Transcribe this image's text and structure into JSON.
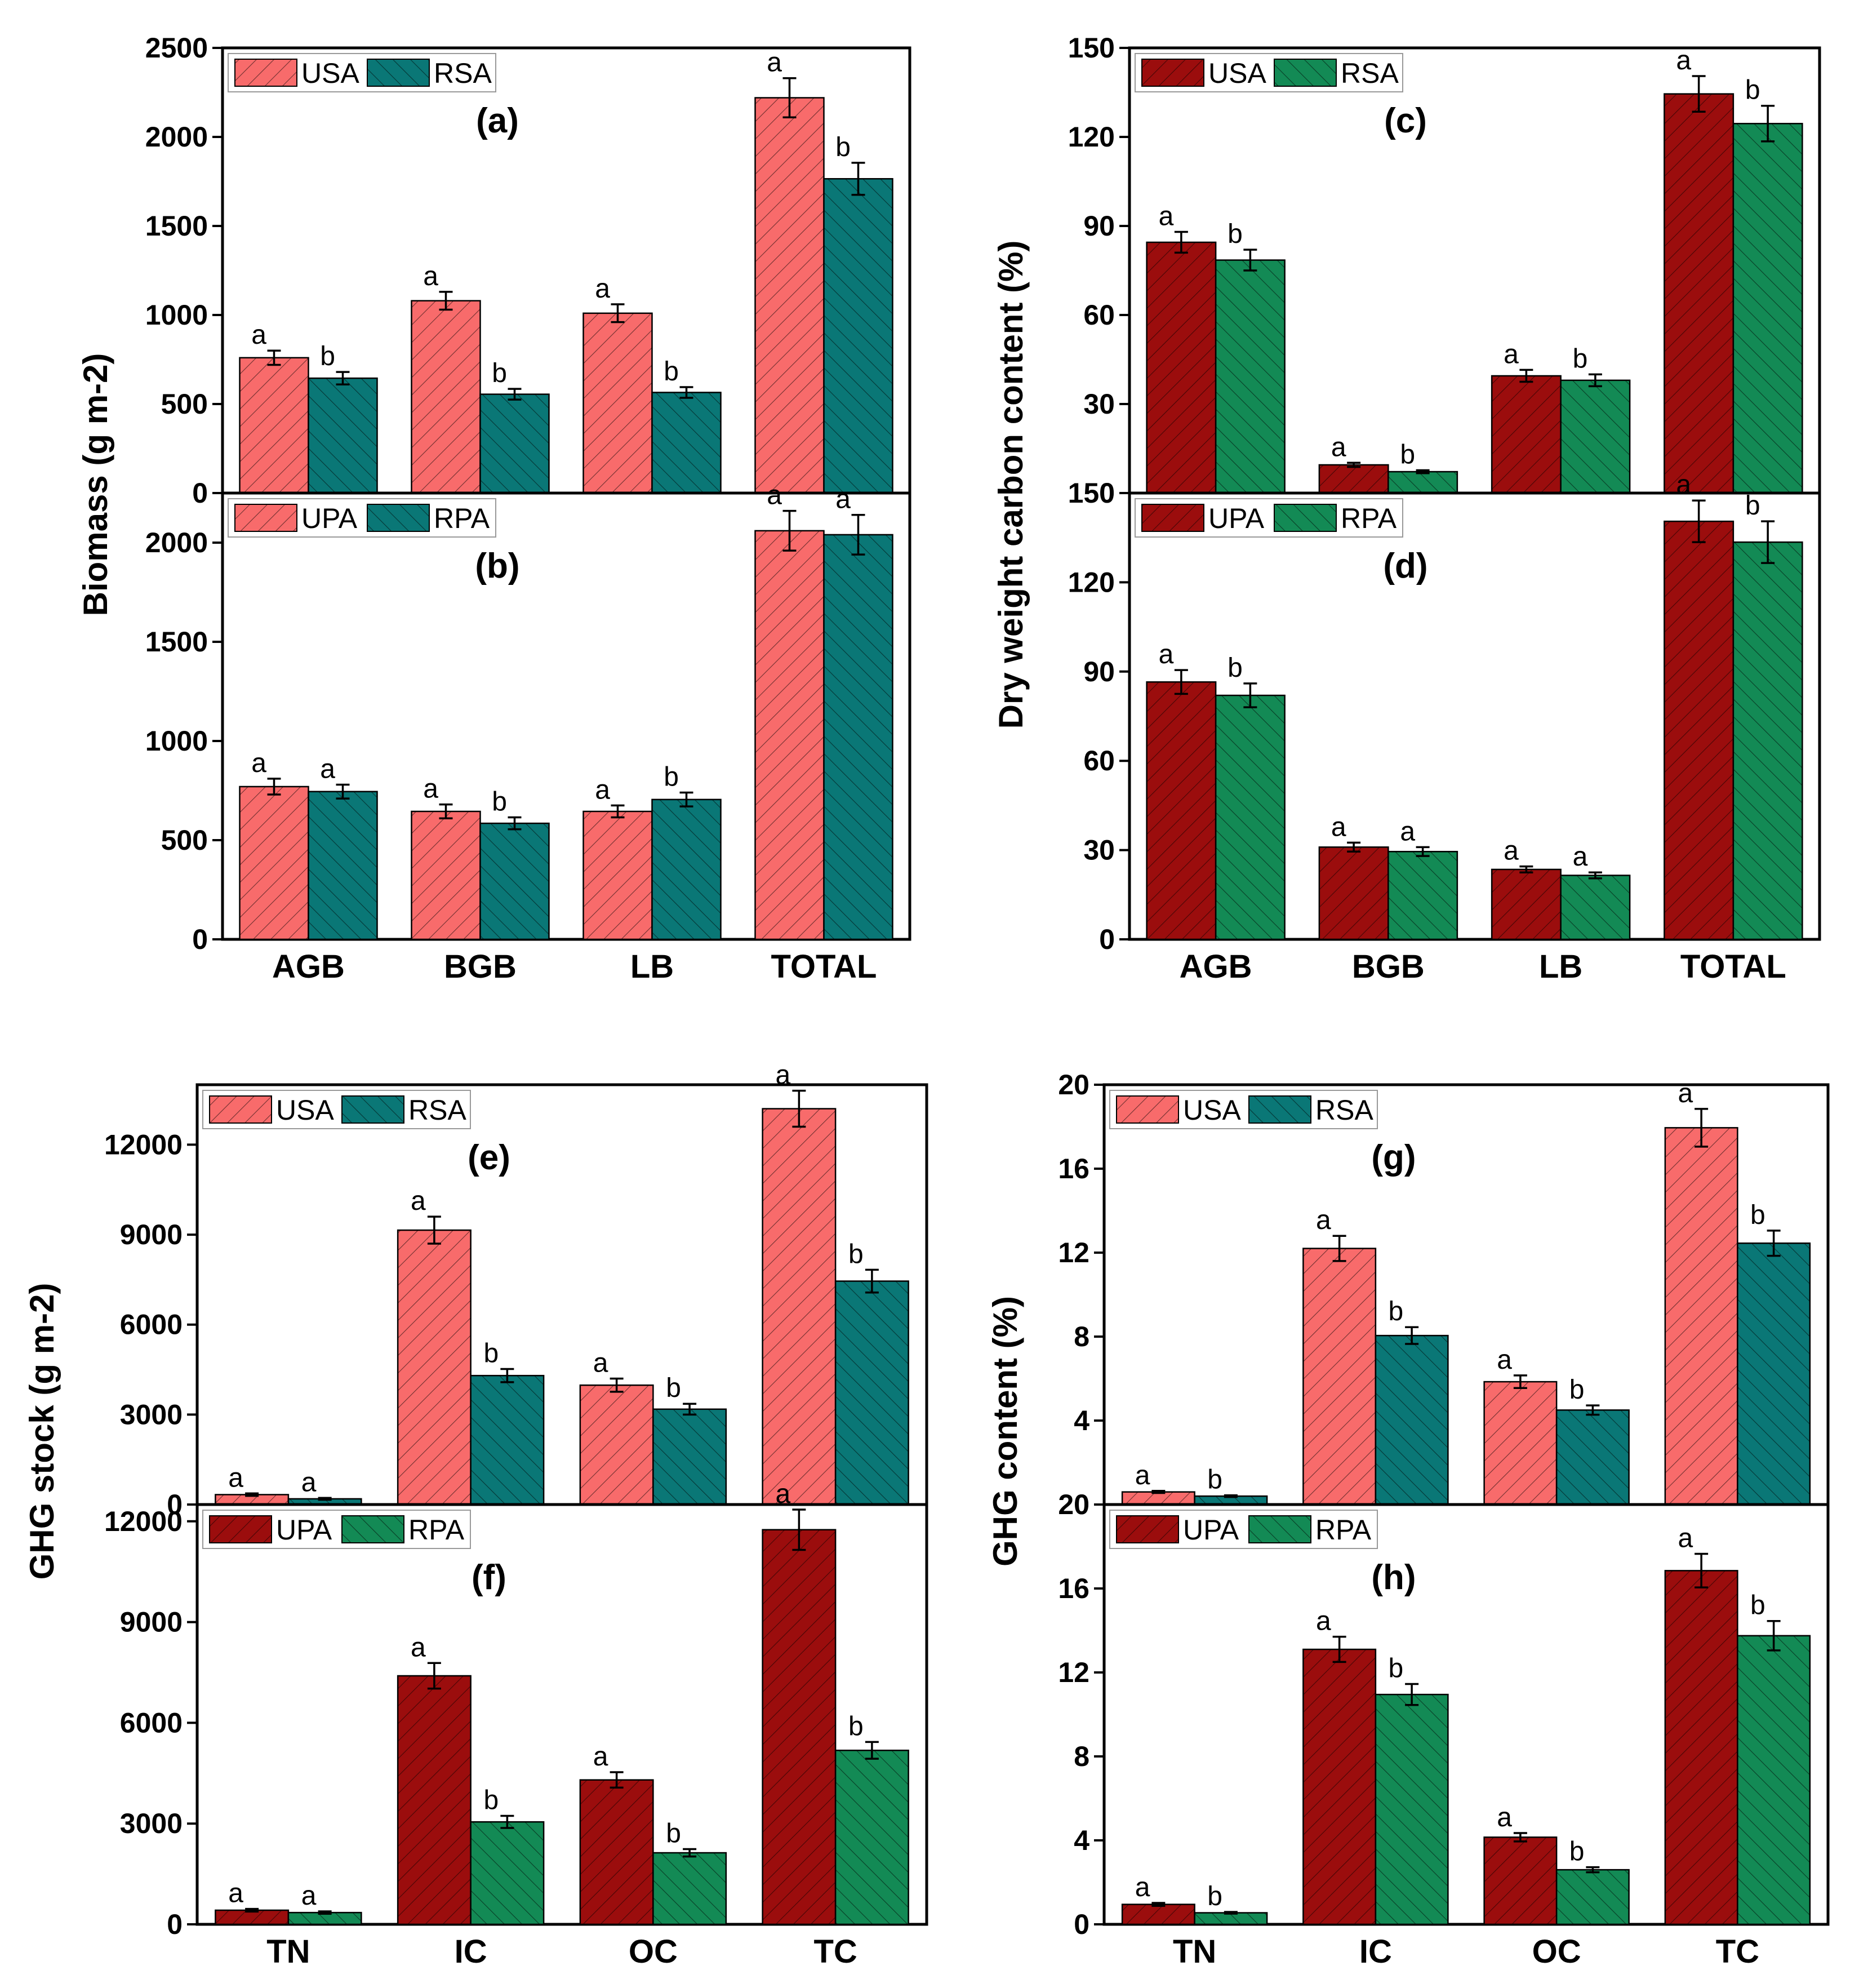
{
  "colors": {
    "usa_upa_light": "#f86b6b",
    "rsa_dark_teal": "#0a7776",
    "upa_dark_red": "#9b0d0d",
    "rpa_green": "#138a55",
    "hatch": "#000000"
  },
  "chart_data": [
    {
      "id": "a",
      "type": "bar",
      "panel_label": "(a)",
      "ylim": [
        0,
        2500
      ],
      "yticks": [
        0,
        500,
        1000,
        1500,
        2000,
        2500
      ],
      "ylabel": "Biomass (g m-2)",
      "categories": [
        "AGB",
        "BGB",
        "LB",
        "TOTAL"
      ],
      "series": [
        {
          "name": "USA",
          "color": "#f86b6b",
          "values": [
            760,
            1080,
            1010,
            2220
          ],
          "errors": [
            40,
            50,
            50,
            110
          ],
          "letters": [
            "a",
            "a",
            "a",
            "a"
          ]
        },
        {
          "name": "RSA",
          "color": "#0a7776",
          "values": [
            645,
            555,
            565,
            1765
          ],
          "errors": [
            35,
            30,
            30,
            90
          ],
          "letters": [
            "b",
            "b",
            "b",
            "b"
          ]
        }
      ],
      "legend": [
        "USA",
        "RSA"
      ]
    },
    {
      "id": "b",
      "type": "bar",
      "panel_label": "(b)",
      "ylim": [
        0,
        2250
      ],
      "yticks": [
        0,
        500,
        1000,
        1500,
        2000
      ],
      "ylabel": "Biomass (g m-2)",
      "categories": [
        "AGB",
        "BGB",
        "LB",
        "TOTAL"
      ],
      "series": [
        {
          "name": "UPA",
          "color": "#f86b6b",
          "values": [
            770,
            645,
            645,
            2060
          ],
          "errors": [
            40,
            35,
            30,
            100
          ],
          "letters": [
            "a",
            "a",
            "a",
            "a"
          ]
        },
        {
          "name": "RPA",
          "color": "#0a7776",
          "values": [
            745,
            585,
            705,
            2040
          ],
          "errors": [
            35,
            30,
            35,
            100
          ],
          "letters": [
            "a",
            "b",
            "b",
            "a"
          ]
        }
      ],
      "legend": [
        "UPA",
        "RPA"
      ]
    },
    {
      "id": "c",
      "type": "bar",
      "panel_label": "(c)",
      "ylim": [
        0,
        150
      ],
      "yticks": [
        0,
        30,
        60,
        90,
        120,
        150
      ],
      "ylabel": "Dry weight carbon content (%)",
      "categories": [
        "AGB",
        "BGB",
        "LB",
        "TOTAL"
      ],
      "series": [
        {
          "name": "USA",
          "color": "#9b0d0d",
          "values": [
            84.5,
            9.5,
            39.5,
            134.5
          ],
          "errors": [
            3.5,
            0.7,
            2,
            6
          ],
          "letters": [
            "a",
            "a",
            "a",
            "a"
          ]
        },
        {
          "name": "RSA",
          "color": "#138a55",
          "values": [
            78.5,
            7.2,
            38,
            124.5
          ],
          "errors": [
            3.5,
            0.5,
            2,
            6
          ],
          "letters": [
            "b",
            "b",
            "b",
            "b"
          ]
        }
      ],
      "legend": [
        "USA",
        "RSA"
      ]
    },
    {
      "id": "d",
      "type": "bar",
      "panel_label": "(d)",
      "ylim": [
        0,
        150
      ],
      "yticks": [
        0,
        30,
        60,
        90,
        120,
        150
      ],
      "ylabel": "Dry weight carbon content (%)",
      "categories": [
        "AGB",
        "BGB",
        "LB",
        "TOTAL"
      ],
      "series": [
        {
          "name": "UPA",
          "color": "#9b0d0d",
          "values": [
            86.5,
            31,
            23.5,
            140.5
          ],
          "errors": [
            4,
            1.5,
            1,
            7
          ],
          "letters": [
            "a",
            "a",
            "a",
            "a"
          ]
        },
        {
          "name": "RPA",
          "color": "#138a55",
          "values": [
            82,
            29.5,
            21.5,
            133.5
          ],
          "errors": [
            4,
            1.5,
            1,
            7
          ],
          "letters": [
            "b",
            "a",
            "a",
            "b"
          ]
        }
      ],
      "legend": [
        "UPA",
        "RPA"
      ]
    },
    {
      "id": "e",
      "type": "bar",
      "panel_label": "(e)",
      "ylim": [
        0,
        14000
      ],
      "yticks": [
        0,
        3000,
        6000,
        9000,
        12000
      ],
      "ylabel": "GHG stock (g m-2)",
      "categories": [
        "TN",
        "IC",
        "OC",
        "TC"
      ],
      "series": [
        {
          "name": "USA",
          "color": "#f86b6b",
          "values": [
            330,
            9150,
            3980,
            13200
          ],
          "errors": [
            40,
            450,
            220,
            600
          ],
          "letters": [
            "a",
            "a",
            "a",
            "a"
          ]
        },
        {
          "name": "RSA",
          "color": "#0a7776",
          "values": [
            190,
            4300,
            3180,
            7450
          ],
          "errors": [
            30,
            220,
            180,
            380
          ],
          "letters": [
            "a",
            "b",
            "b",
            "b"
          ]
        }
      ],
      "legend": [
        "USA",
        "RSA"
      ]
    },
    {
      "id": "f",
      "type": "bar",
      "panel_label": "(f)",
      "ylim": [
        0,
        12500
      ],
      "yticks": [
        0,
        3000,
        6000,
        9000,
        12000
      ],
      "ylabel": "GHG stock (g m-2)",
      "categories": [
        "TN",
        "IC",
        "OC",
        "TC"
      ],
      "series": [
        {
          "name": "UPA",
          "color": "#9b0d0d",
          "values": [
            420,
            7400,
            4300,
            11750
          ],
          "errors": [
            40,
            380,
            230,
            600
          ],
          "letters": [
            "a",
            "a",
            "a",
            "a"
          ]
        },
        {
          "name": "RPA",
          "color": "#138a55",
          "values": [
            350,
            3050,
            2130,
            5180
          ],
          "errors": [
            35,
            180,
            110,
            250
          ],
          "letters": [
            "a",
            "b",
            "b",
            "b"
          ]
        }
      ],
      "legend": [
        "UPA",
        "RPA"
      ]
    },
    {
      "id": "g",
      "type": "bar",
      "panel_label": "(g)",
      "ylim": [
        0,
        20
      ],
      "yticks": [
        0,
        4,
        8,
        12,
        16,
        20
      ],
      "ylabel": "GHG content (%)",
      "categories": [
        "TN",
        "IC",
        "OC",
        "TC"
      ],
      "series": [
        {
          "name": "USA",
          "color": "#f86b6b",
          "values": [
            0.6,
            12.2,
            5.85,
            17.95
          ],
          "errors": [
            0.05,
            0.6,
            0.3,
            0.9
          ],
          "letters": [
            "a",
            "a",
            "a",
            "a"
          ]
        },
        {
          "name": "RSA",
          "color": "#0a7776",
          "values": [
            0.4,
            8.05,
            4.5,
            12.45
          ],
          "errors": [
            0.04,
            0.4,
            0.22,
            0.6
          ],
          "letters": [
            "b",
            "b",
            "b",
            "b"
          ]
        }
      ],
      "legend": [
        "USA",
        "RSA"
      ]
    },
    {
      "id": "h",
      "type": "bar",
      "panel_label": "(h)",
      "ylim": [
        0,
        20
      ],
      "yticks": [
        0,
        4,
        8,
        12,
        16,
        20
      ],
      "ylabel": "GHG content (%)",
      "categories": [
        "TN",
        "IC",
        "OC",
        "TC"
      ],
      "series": [
        {
          "name": "UPA",
          "color": "#9b0d0d",
          "values": [
            0.95,
            13.1,
            4.15,
            16.85
          ],
          "errors": [
            0.07,
            0.6,
            0.2,
            0.8
          ],
          "letters": [
            "a",
            "a",
            "a",
            "a"
          ]
        },
        {
          "name": "RPA",
          "color": "#138a55",
          "values": [
            0.55,
            10.95,
            2.6,
            13.75
          ],
          "errors": [
            0.04,
            0.5,
            0.12,
            0.7
          ],
          "letters": [
            "b",
            "b",
            "b",
            "b"
          ]
        }
      ],
      "legend": [
        "UPA",
        "RPA"
      ]
    }
  ]
}
